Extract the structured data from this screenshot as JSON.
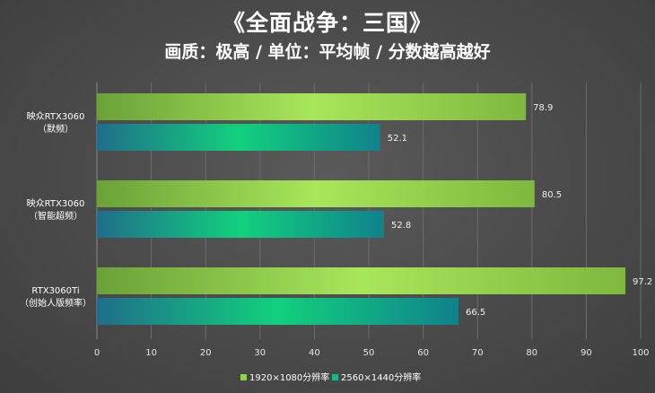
{
  "chart_data": {
    "type": "bar",
    "orientation": "horizontal",
    "title": "《全面战争：三国》",
    "subtitle": "画质：极高 / 单位：平均帧 / 分数越高越好",
    "categories": [
      [
        "映众RTX3060",
        "（默频）"
      ],
      [
        "映众RTX3060",
        "（智能超频）"
      ],
      [
        "RTX3060Ti",
        "（创始人版频率）"
      ]
    ],
    "series": [
      {
        "name": "1920×1080分辨率",
        "values": [
          78.9,
          80.5,
          97.2
        ],
        "color": "#8fd64a"
      },
      {
        "name": "2560×1440分辨率",
        "values": [
          52.1,
          52.8,
          66.5
        ],
        "color": "#16b889"
      }
    ],
    "xlim": [
      0,
      100
    ],
    "xticks": [
      0,
      10,
      20,
      30,
      40,
      50,
      60,
      70,
      80,
      90,
      100
    ],
    "grid": true,
    "legend_position": "bottom"
  }
}
